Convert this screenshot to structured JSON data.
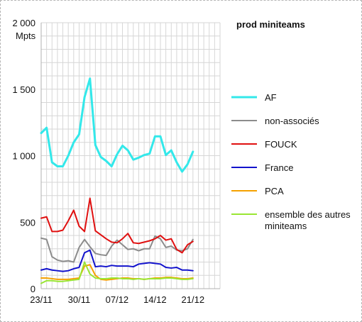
{
  "chart_data": {
    "type": "line",
    "title": "prod miniteams",
    "unit_label": "Mpts",
    "ylim": [
      0,
      2000
    ],
    "y_ticks": [
      0,
      500,
      1000,
      1500,
      2000
    ],
    "y_tick_labels": [
      "0",
      "500",
      "1 000",
      "1 500",
      "2 000"
    ],
    "x_ticks": [
      0,
      7,
      14,
      21,
      28
    ],
    "x_tick_labels": [
      "23/11",
      "30/11",
      "07/12",
      "14/12",
      "21/12"
    ],
    "x_count": 34,
    "grid": true,
    "legend_position": "right",
    "series": [
      {
        "name": "AF",
        "color": "#33e8ea",
        "values": [
          1170,
          1210,
          950,
          920,
          920,
          1000,
          1100,
          1160,
          1440,
          1580,
          1080,
          990,
          960,
          920,
          1010,
          1075,
          1040,
          970,
          985,
          1005,
          1015,
          1145,
          1145,
          1005,
          1040,
          950,
          880,
          935,
          1030
        ]
      },
      {
        "name": "non-associés",
        "color": "#8c8c8c",
        "values": [
          380,
          370,
          240,
          215,
          205,
          210,
          200,
          310,
          370,
          315,
          265,
          255,
          250,
          320,
          365,
          330,
          295,
          300,
          285,
          300,
          300,
          395,
          375,
          310,
          320,
          290,
          285,
          300,
          370
        ]
      },
      {
        "name": "FOUCK",
        "color": "#e01010",
        "values": [
          530,
          540,
          430,
          430,
          440,
          510,
          590,
          470,
          430,
          680,
          435,
          405,
          375,
          350,
          345,
          375,
          415,
          345,
          340,
          350,
          360,
          375,
          400,
          365,
          375,
          295,
          270,
          330,
          355
        ]
      },
      {
        "name": "France",
        "color": "#1212cc",
        "values": [
          140,
          150,
          140,
          135,
          130,
          135,
          150,
          160,
          270,
          290,
          165,
          170,
          165,
          175,
          170,
          170,
          170,
          165,
          185,
          190,
          195,
          190,
          185,
          160,
          155,
          160,
          140,
          140,
          135
        ]
      },
      {
        "name": "PCA",
        "color": "#f5a100",
        "values": [
          80,
          80,
          75,
          70,
          70,
          70,
          75,
          80,
          170,
          180,
          100,
          70,
          65,
          70,
          75,
          80,
          80,
          75,
          75,
          70,
          75,
          80,
          80,
          85,
          85,
          80,
          75,
          75,
          80
        ]
      },
      {
        "name": "ensemble des autres miniteams",
        "color": "#99e633",
        "values": [
          40,
          60,
          60,
          55,
          55,
          60,
          65,
          70,
          200,
          110,
          80,
          75,
          75,
          80,
          80,
          75,
          75,
          70,
          75,
          70,
          75,
          75,
          75,
          80,
          80,
          75,
          70,
          70,
          75
        ]
      }
    ]
  }
}
